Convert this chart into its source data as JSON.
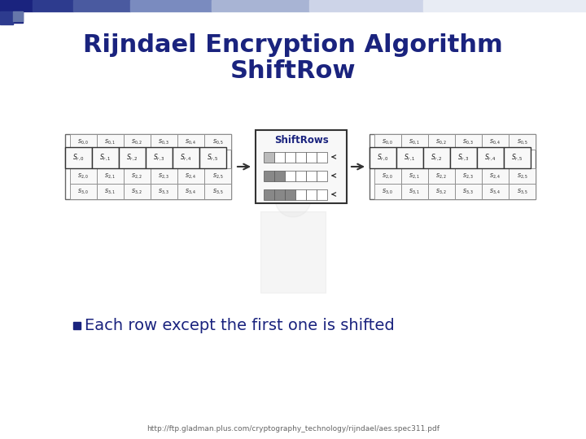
{
  "title_line1": "Rijndael Encryption Algorithm",
  "title_line2": "ShiftRow",
  "title_color": "#1a237e",
  "title_fontsize": 22,
  "bg_color": "#ffffff",
  "bullet_text": "Each row except the first one is shifted",
  "bullet_fontsize": 14,
  "footer_text": "http://ftp.gladman.plus.com/cryptography_technology/rijndael/aes.spec311.pdf",
  "footer_fontsize": 6.5,
  "left_labels": [
    [
      "S_{0,0}",
      "S_{0,1}",
      "S_{0,2}",
      "S_{0,3}",
      "S_{0,4}",
      "S_{0,5}"
    ],
    [
      "S_{r,0}",
      "S_{r,1}",
      "S_{r,2}",
      "S_{r,3}",
      "S_{r,4}",
      "S_{r,5}"
    ],
    [
      "S_{2,0}",
      "S_{2,1}",
      "S_{2,2}",
      "S_{2,3}",
      "S_{2,4}",
      "S_{2,5}"
    ],
    [
      "S_{3,0}",
      "S_{3,1}",
      "S_{3,2}",
      "S_{3,3}",
      "S_{3,4}",
      "S_{3,5}"
    ]
  ],
  "right_labels": [
    [
      "S_{0,0}",
      "S_{0,1}",
      "S_{0,2}",
      "S_{0,3}",
      "S_{0,4}",
      "S_{0,5}"
    ],
    [
      "S_{r,0}",
      "S_{r,1}",
      "S_{r,2}",
      "S_{r,3}",
      "S_{r,4}",
      "S_{r,5}"
    ],
    [
      "S_{2,0}",
      "S_{2,1}",
      "S_{2,2}",
      "S_{2,3}",
      "S_{2,4}",
      "S_{2,5}"
    ],
    [
      "S_{3,0}",
      "S_{3,1}",
      "S_{3,2}",
      "S_{3,3}",
      "S_{3,4}",
      "S_{3,5}"
    ]
  ],
  "shiftrows_label": "ShiftRows",
  "text_color": "#1a237e",
  "cell_color_normal": "#f5f5f5",
  "cell_color_highlight": "#e8e8e8",
  "cell_border_normal": "#888888",
  "cell_border_highlight": "#333333",
  "bar_gray1": "#c0c0c0",
  "bar_gray2": "#888888",
  "bar_gray3": "#888888",
  "bar_white": "#ffffff",
  "arrow_color": "#333333"
}
